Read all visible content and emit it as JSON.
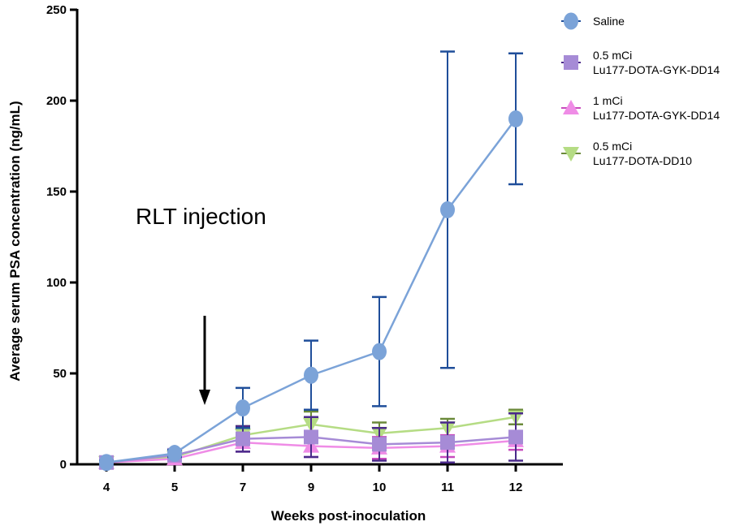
{
  "chart_data": {
    "type": "line",
    "title": "",
    "xlabel": "Weeks post-inoculation",
    "ylabel": "Average serum PSA concentration (ng/mL)",
    "categories": [
      "4",
      "5",
      "7",
      "9",
      "10",
      "11",
      "12"
    ],
    "ylim": [
      0,
      250
    ],
    "yticks": [
      0,
      50,
      100,
      150,
      200,
      250
    ],
    "annotation": {
      "text": "RLT injection",
      "arrow_at_week": 6
    },
    "series": [
      {
        "name": "Saline",
        "legend_lines": [
          "Saline"
        ],
        "marker": "circle",
        "color": "#7ba3d8",
        "err_color": "#1f4e9a",
        "values": [
          1,
          6,
          31,
          49,
          62,
          140,
          190
        ],
        "err": [
          1,
          2,
          11,
          19,
          30,
          87,
          36
        ]
      },
      {
        "name": "0.5 mCi Lu177-DOTA-GYK-DD14",
        "legend_lines": [
          "0.5 mCi",
          "Lu177-DOTA-GYK-DD14"
        ],
        "marker": "square",
        "color": "#a68bd6",
        "err_color": "#4a2a8a",
        "values": [
          1,
          5,
          14,
          15,
          11,
          12,
          15
        ],
        "err": [
          1,
          1,
          7,
          11,
          9,
          11,
          13
        ]
      },
      {
        "name": "1 mCi Lu177-DOTA-GYK-DD14",
        "legend_lines": [
          "1 mCi",
          "Lu177-DOTA-GYK-DD14"
        ],
        "marker": "triangle-up",
        "color": "#ef8ce6",
        "err_color": "#c84bbd",
        "values": [
          1,
          3,
          12,
          10,
          9,
          10,
          13
        ],
        "err": [
          1,
          1,
          5,
          6,
          6,
          6,
          5
        ]
      },
      {
        "name": "0.5 mCi Lu177-DOTA-DD10",
        "legend_lines": [
          "0.5 mCi",
          "Lu177-DOTA-DD10"
        ],
        "marker": "triangle-down",
        "color": "#b5dc84",
        "err_color": "#6b8a3a",
        "values": [
          1,
          4,
          16,
          22,
          17,
          20,
          26
        ],
        "err": [
          1,
          1,
          5,
          7,
          6,
          5,
          4
        ]
      }
    ]
  }
}
